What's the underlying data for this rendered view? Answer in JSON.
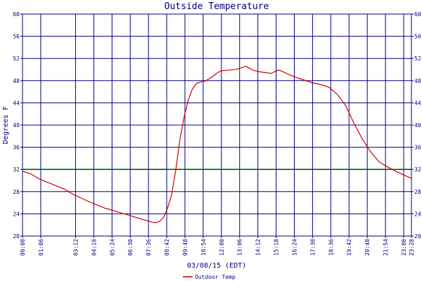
{
  "chart_data": {
    "type": "line",
    "title": "Outside Temperature",
    "xlabel": "03/08/15 (EDT)",
    "ylabel": "Degrees F",
    "ylim": [
      20,
      60
    ],
    "yticks": [
      "20",
      "24",
      "28",
      "32",
      "36",
      "40",
      "44",
      "48",
      "52",
      "56",
      "60"
    ],
    "xticks": [
      "00:00",
      "01:06",
      "03:12",
      "04:18",
      "05:24",
      "06:30",
      "07:36",
      "08:42",
      "09:48",
      "10:54",
      "12:00",
      "13:06",
      "14:12",
      "15:18",
      "16:24",
      "17:30",
      "18:36",
      "19:42",
      "20:48",
      "21:54",
      "23:00",
      "23:28"
    ],
    "grid": true,
    "legend_position": "bottom-left",
    "reference_line": {
      "y": 32,
      "color": "#006400"
    },
    "series": [
      {
        "name": "Outdoor Temp",
        "color": "#cc0000",
        "x": [
          "00:00",
          "00:30",
          "01:00",
          "01:30",
          "02:00",
          "02:30",
          "03:00",
          "03:30",
          "04:00",
          "04:30",
          "05:00",
          "05:30",
          "06:00",
          "06:30",
          "07:00",
          "07:30",
          "07:50",
          "08:00",
          "08:15",
          "08:30",
          "08:45",
          "09:00",
          "09:15",
          "09:30",
          "09:45",
          "10:00",
          "10:15",
          "10:30",
          "10:45",
          "11:00",
          "11:15",
          "11:30",
          "11:45",
          "12:00",
          "12:30",
          "13:00",
          "13:30",
          "13:50",
          "14:00",
          "14:30",
          "15:00",
          "15:20",
          "15:30",
          "16:00",
          "16:30",
          "17:00",
          "17:30",
          "18:00",
          "18:30",
          "19:00",
          "19:30",
          "20:00",
          "20:30",
          "21:00",
          "21:30",
          "22:00",
          "22:30",
          "23:00",
          "23:28"
        ],
        "values": [
          31.7,
          31.2,
          30.3,
          29.7,
          29.1,
          28.5,
          27.6,
          26.9,
          26.2,
          25.6,
          25.0,
          24.6,
          24.1,
          23.7,
          23.2,
          22.8,
          22.5,
          22.4,
          22.6,
          23.3,
          25.0,
          27.5,
          32.0,
          37.5,
          41.5,
          44.5,
          46.5,
          47.5,
          47.8,
          47.9,
          48.3,
          48.8,
          49.4,
          49.8,
          49.9,
          50.1,
          50.6,
          50.0,
          49.8,
          49.5,
          49.3,
          49.8,
          49.9,
          49.2,
          48.6,
          48.1,
          47.6,
          47.3,
          46.8,
          45.5,
          43.5,
          40.3,
          37.5,
          35.2,
          33.4,
          32.5,
          31.7,
          31.0,
          30.4
        ]
      }
    ]
  }
}
